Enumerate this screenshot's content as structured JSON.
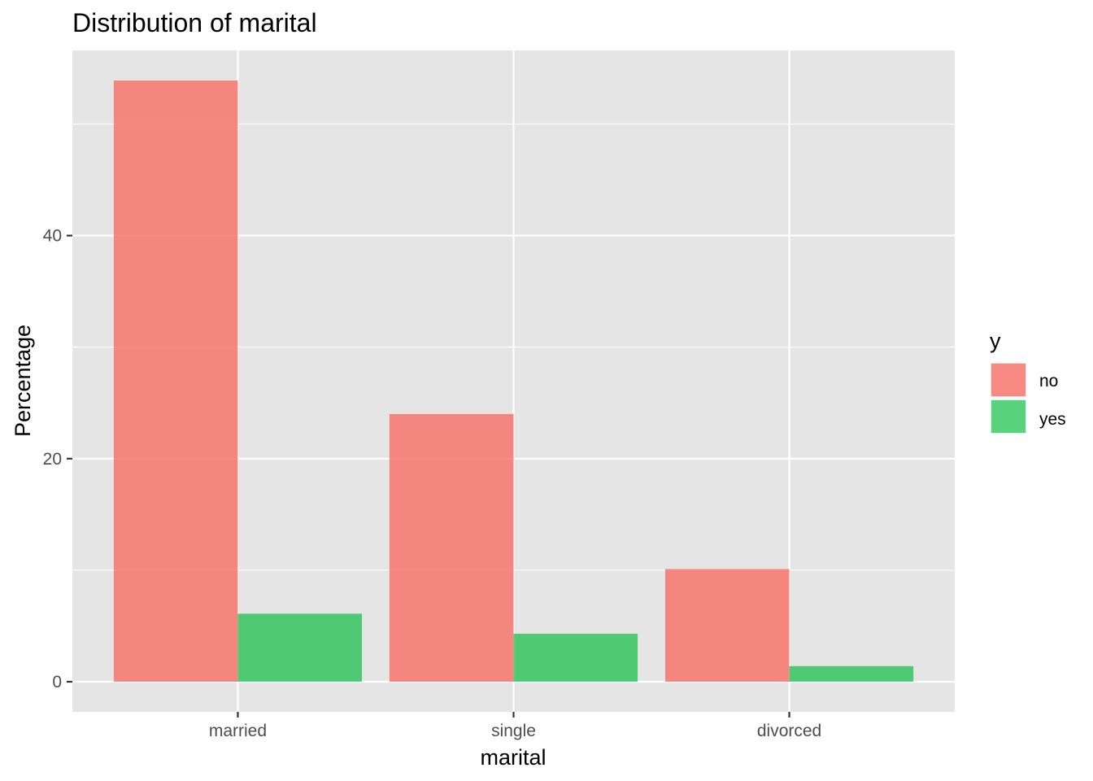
{
  "chart_data": {
    "type": "bar",
    "title": "Distribution of marital",
    "xlabel": "marital",
    "ylabel": "Percentage",
    "categories": [
      "married",
      "single",
      "divorced"
    ],
    "series": [
      {
        "name": "no",
        "values": [
          53.9,
          24.0,
          10.1
        ],
        "color": "#F8766D"
      },
      {
        "name": "yes",
        "values": [
          6.1,
          4.3,
          1.4
        ],
        "color": "#00BA38"
      }
    ],
    "ylim": [
      -2.7,
      56.6
    ],
    "yticks": [
      0,
      20,
      40
    ],
    "y_minor_ticks": [
      10,
      30,
      50
    ],
    "grid": true,
    "legend": {
      "title": "y",
      "placement": "right"
    }
  }
}
